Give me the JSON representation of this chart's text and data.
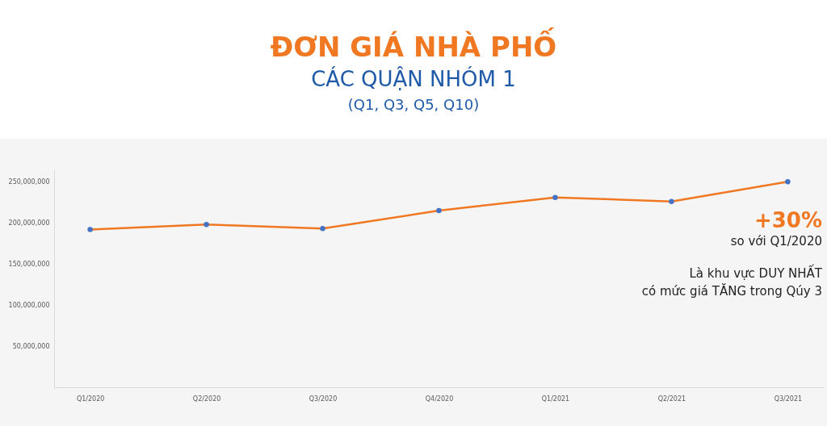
{
  "chart_data": {
    "type": "line",
    "title": "ĐƠN GIÁ NHÀ PHỐ",
    "subtitle": "CÁC QUẬN NHÓM 1",
    "categories": [
      "Q1/2020",
      "Q2/2020",
      "Q3/2020",
      "Q4/2020",
      "Q1/2021",
      "Q2/2021",
      "Q3/2021"
    ],
    "series": [
      {
        "color": "#f07823",
        "values": [
          192000000,
          198000000,
          193000000,
          215000000,
          231000000,
          226000000,
          250000000
        ]
      }
    ],
    "ylim": [
      0,
      265000000
    ],
    "yticks": [
      {
        "value": 50000000,
        "label": "50,000,000"
      },
      {
        "value": 100000000,
        "label": "100,000,000"
      },
      {
        "value": 150000000,
        "label": "150,000,000"
      },
      {
        "value": 200000000,
        "label": "200,000,000"
      },
      {
        "value": 250000000,
        "label": "250,000,000"
      }
    ],
    "grid": false,
    "marker": "circle",
    "annotations": [
      "(Q1, Q3, Q5, Q10)",
      "+30%",
      "so với Q1/2020",
      "Là khu vực DUY NHẤT",
      "có mức giá TĂNG trong Qúy 3"
    ]
  }
}
